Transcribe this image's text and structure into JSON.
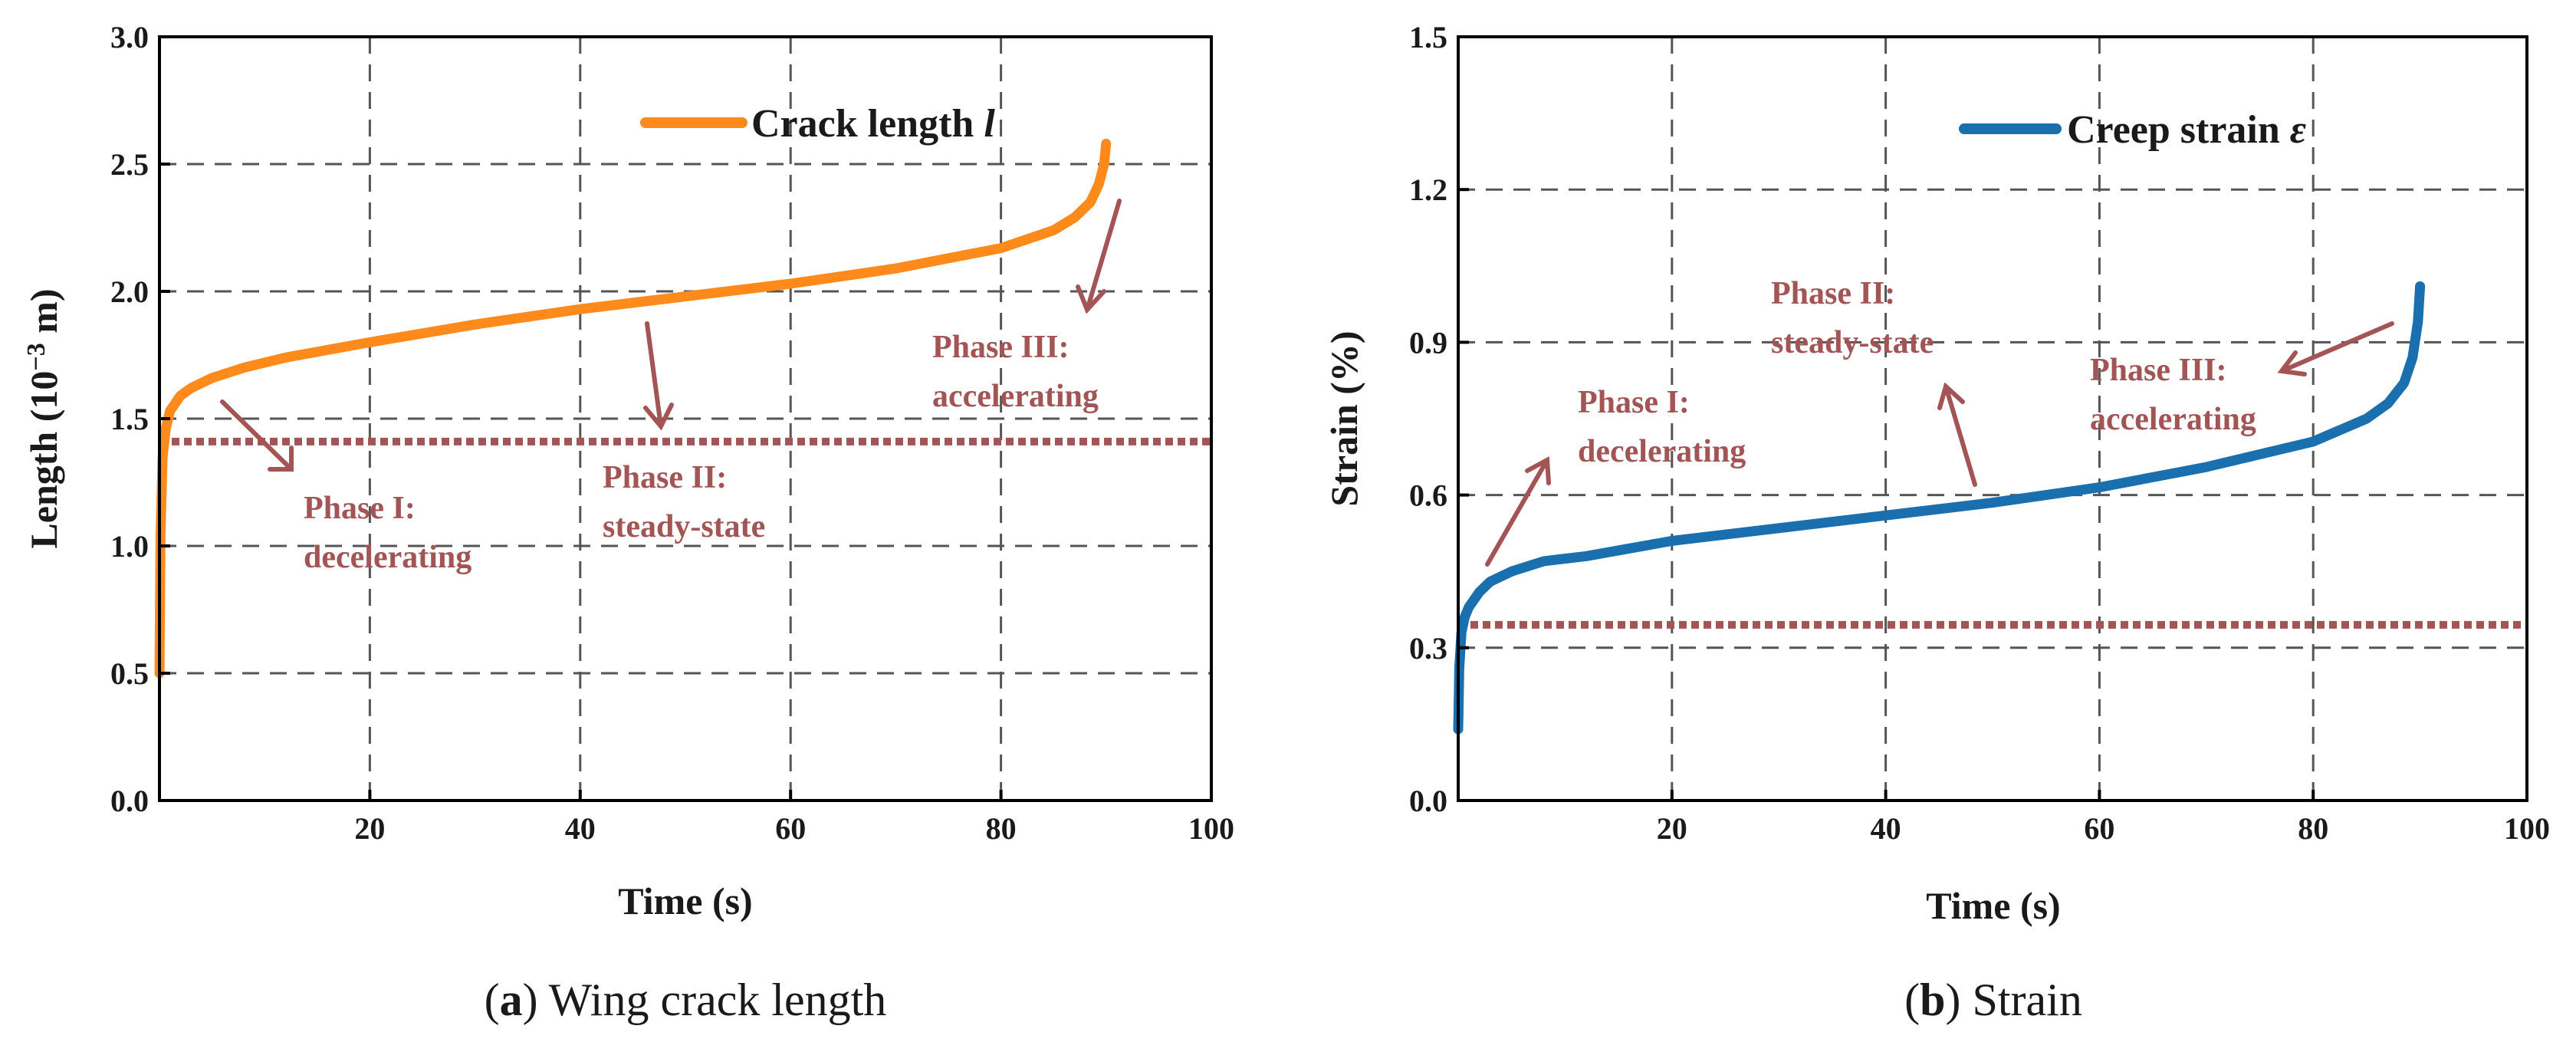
{
  "chart_data": [
    {
      "type": "line",
      "caption": {
        "letter": "a",
        "text": "Wing crack length"
      },
      "xlabel": "Time (s)",
      "ylabel_prefix": "Length (10",
      "ylabel_exp": "−3",
      "ylabel_suffix": " m)",
      "xlim": [
        0,
        100
      ],
      "ylim": [
        0,
        3.0
      ],
      "xticks": [
        20,
        40,
        60,
        80,
        100
      ],
      "xtick_labels": [
        "20",
        "40",
        "60",
        "80",
        "100"
      ],
      "yticks": [
        0,
        0.5,
        1.0,
        1.5,
        2.0,
        2.5,
        3.0
      ],
      "ytick_labels": [
        "0.0",
        "0.5",
        "1.0",
        "1.5",
        "2.0",
        "2.5",
        "3.0"
      ],
      "grid": true,
      "legend_placement": "top-right",
      "series": [
        {
          "name_text": "Crack length ",
          "name_symbol": "l",
          "color": "#ff8a1c",
          "x": [
            0.0,
            0.1,
            0.3,
            0.6,
            1.0,
            2,
            3,
            5,
            8,
            12,
            20,
            30,
            40,
            50,
            60,
            70,
            80,
            85,
            87,
            88.5,
            89.3,
            89.8,
            90.0
          ],
          "y": [
            0.5,
            1.05,
            1.35,
            1.46,
            1.53,
            1.59,
            1.62,
            1.66,
            1.7,
            1.74,
            1.8,
            1.87,
            1.93,
            1.98,
            2.03,
            2.09,
            2.17,
            2.24,
            2.29,
            2.35,
            2.42,
            2.5,
            2.58
          ]
        }
      ],
      "threshold": {
        "y": 1.41,
        "color": "#a35454"
      },
      "annotations": [
        {
          "lines": [
            "Phase I:",
            "decelerating"
          ],
          "color": "#a35454"
        },
        {
          "lines": [
            "Phase II:",
            "steady-state"
          ],
          "color": "#a35454"
        },
        {
          "lines": [
            "Phase III:",
            "accelerating"
          ],
          "color": "#a35454"
        }
      ]
    },
    {
      "type": "line",
      "caption": {
        "letter": "b",
        "text": "Strain"
      },
      "xlabel": "Time (s)",
      "ylabel": "Strain (%)",
      "xlim": [
        0,
        100
      ],
      "ylim": [
        0,
        1.5
      ],
      "xticks": [
        20,
        40,
        60,
        80,
        100
      ],
      "xtick_labels": [
        "20",
        "40",
        "60",
        "80",
        "100"
      ],
      "yticks": [
        0,
        0.3,
        0.6,
        0.9,
        1.2,
        1.5
      ],
      "ytick_labels": [
        "0.0",
        "0.3",
        "0.6",
        "0.9",
        "1.2",
        "1.5"
      ],
      "grid": true,
      "legend_placement": "top-right",
      "series": [
        {
          "name_text": "Creep strain ",
          "name_symbol": "ε",
          "color": "#1a6fae",
          "x": [
            0.0,
            0.1,
            0.3,
            0.6,
            1.0,
            2,
            3,
            5,
            8,
            12,
            20,
            30,
            40,
            50,
            60,
            70,
            80,
            85,
            87,
            88.5,
            89.3,
            89.8,
            90.0
          ],
          "y": [
            0.14,
            0.26,
            0.33,
            0.36,
            0.38,
            0.41,
            0.43,
            0.45,
            0.47,
            0.48,
            0.51,
            0.535,
            0.56,
            0.585,
            0.615,
            0.655,
            0.705,
            0.75,
            0.78,
            0.82,
            0.87,
            0.94,
            1.01
          ]
        }
      ],
      "threshold": {
        "y": 0.345,
        "color": "#a35454"
      },
      "annotations": [
        {
          "lines": [
            "Phase I:",
            "decelerating"
          ],
          "color": "#a35454"
        },
        {
          "lines": [
            "Phase II:",
            "steady-state"
          ],
          "color": "#a35454"
        },
        {
          "lines": [
            "Phase III:",
            "accelerating"
          ],
          "color": "#a35454"
        }
      ]
    }
  ]
}
